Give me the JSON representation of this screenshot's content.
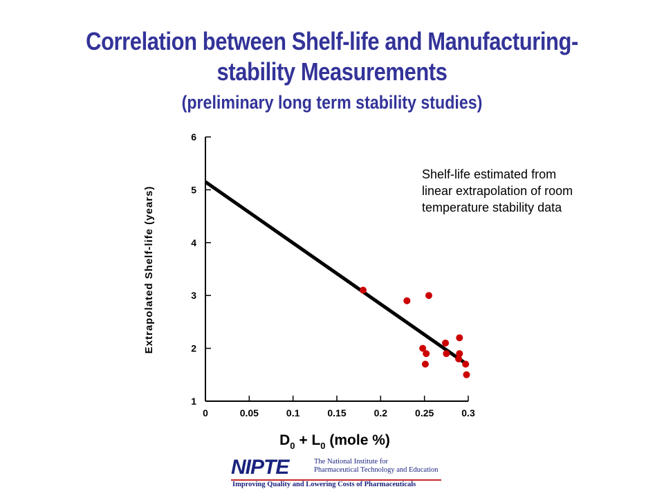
{
  "slide": {
    "title_line1": "Correlation between Shelf-life and Manufacturing-",
    "title_line2": "stability Measurements",
    "subtitle": "(preliminary long term stability studies)"
  },
  "annotation": {
    "line1": "Shelf-life estimated from",
    "line2": "linear extrapolation of room",
    "line3": "temperature stability data"
  },
  "logo": {
    "name": "NIPTE",
    "tagline_line1": "The National Institute for",
    "tagline_line2": "Pharmaceutical Technology and Education",
    "slogan": "Improving Quality and Lowering Costs of Pharmaceuticals"
  },
  "chart_data": {
    "type": "scatter",
    "title": "",
    "xlabel_main": "D",
    "xlabel_sub1": "0",
    "xlabel_plus": " + L",
    "xlabel_sub2": "0",
    "xlabel_unit": " (mole %)",
    "ylabel": "Extrapolated Shelf-life (years)",
    "xlim": [
      0,
      0.3
    ],
    "ylim": [
      1,
      6
    ],
    "x_ticks": [
      "0",
      "0.05",
      "0.1",
      "0.15",
      "0.2",
      "0.25",
      "0.3"
    ],
    "y_ticks": [
      "1",
      "2",
      "3",
      "4",
      "5",
      "6"
    ],
    "grid": false,
    "points": [
      {
        "x": 0.18,
        "y": 3.1
      },
      {
        "x": 0.23,
        "y": 2.9
      },
      {
        "x": 0.255,
        "y": 3.0
      },
      {
        "x": 0.248,
        "y": 2.0
      },
      {
        "x": 0.252,
        "y": 1.9
      },
      {
        "x": 0.251,
        "y": 1.7
      },
      {
        "x": 0.274,
        "y": 2.1
      },
      {
        "x": 0.275,
        "y": 1.9
      },
      {
        "x": 0.29,
        "y": 2.2
      },
      {
        "x": 0.29,
        "y": 1.9
      },
      {
        "x": 0.289,
        "y": 1.8
      },
      {
        "x": 0.297,
        "y": 1.7
      },
      {
        "x": 0.298,
        "y": 1.5
      }
    ],
    "fit_line": {
      "x": [
        0,
        0.3
      ],
      "y": [
        5.15,
        1.68
      ]
    },
    "point_color": "#cc0000",
    "line_color": "#000000"
  }
}
